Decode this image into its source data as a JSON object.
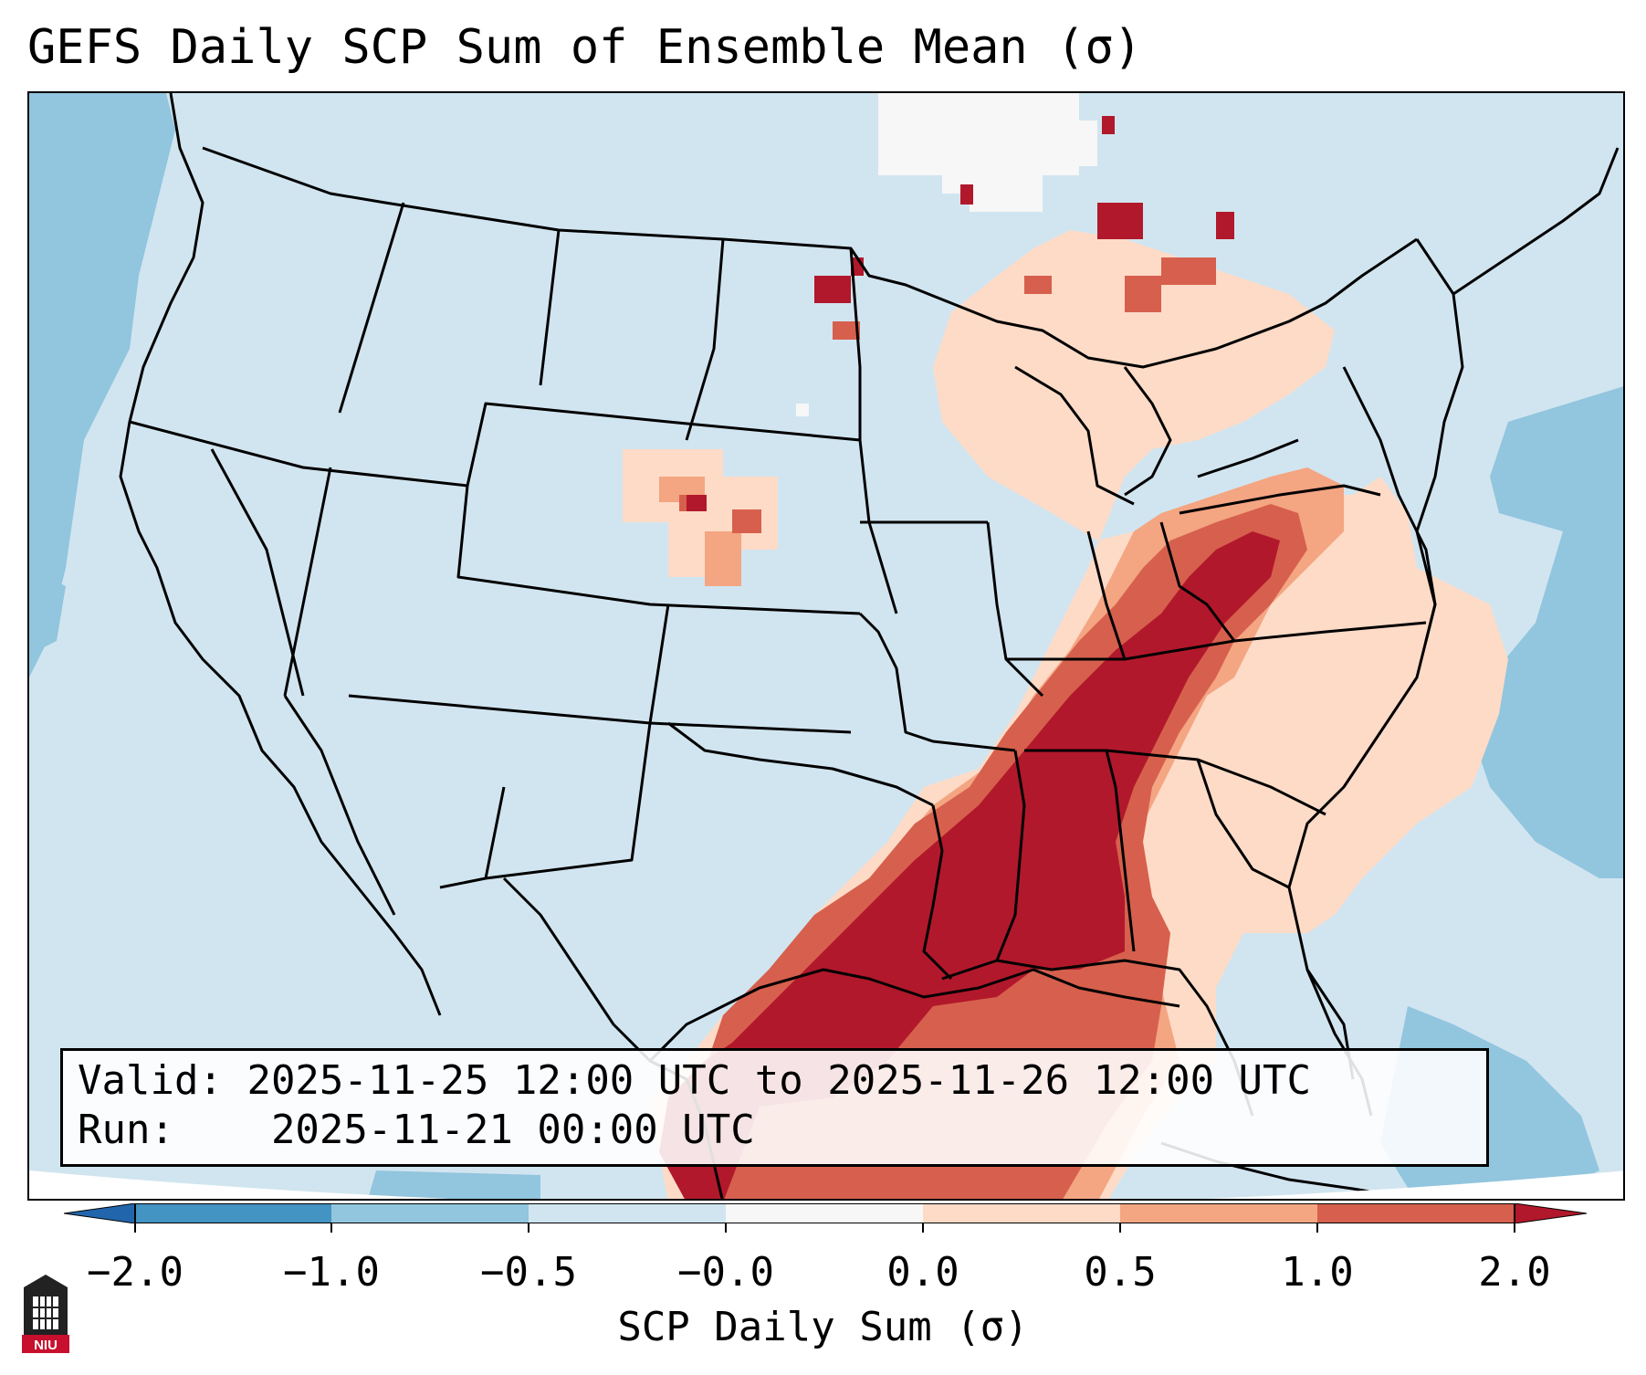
{
  "title": "GEFS Daily SCP Sum of Ensemble Mean (σ)",
  "info": {
    "valid_label": "Valid:",
    "valid_value": "2025-11-25 12:00 UTC to 2025-11-26 12:00 UTC",
    "run_label": "Run:",
    "run_value": "2025-11-21 00:00 UTC"
  },
  "colorbar": {
    "label": "SCP Daily Sum (σ)",
    "ticks": [
      "−2.0",
      "−1.0",
      "−0.5",
      "−0.0",
      "0.0",
      "0.5",
      "1.0",
      "2.0"
    ],
    "colors": [
      "#4393c3",
      "#92c5de",
      "#d1e5f0",
      "#f7f7f7",
      "#fddbc7",
      "#f4a582",
      "#d6604d",
      "#b2182b"
    ],
    "extend_low_color": "#2166ac",
    "extend_high_color": "#b2182b"
  },
  "logo_text": "NIU",
  "colors": {
    "background_ocean": "#cfe3f0",
    "deep_blue": "#92c5de",
    "accent_red": "#b2182b"
  }
}
